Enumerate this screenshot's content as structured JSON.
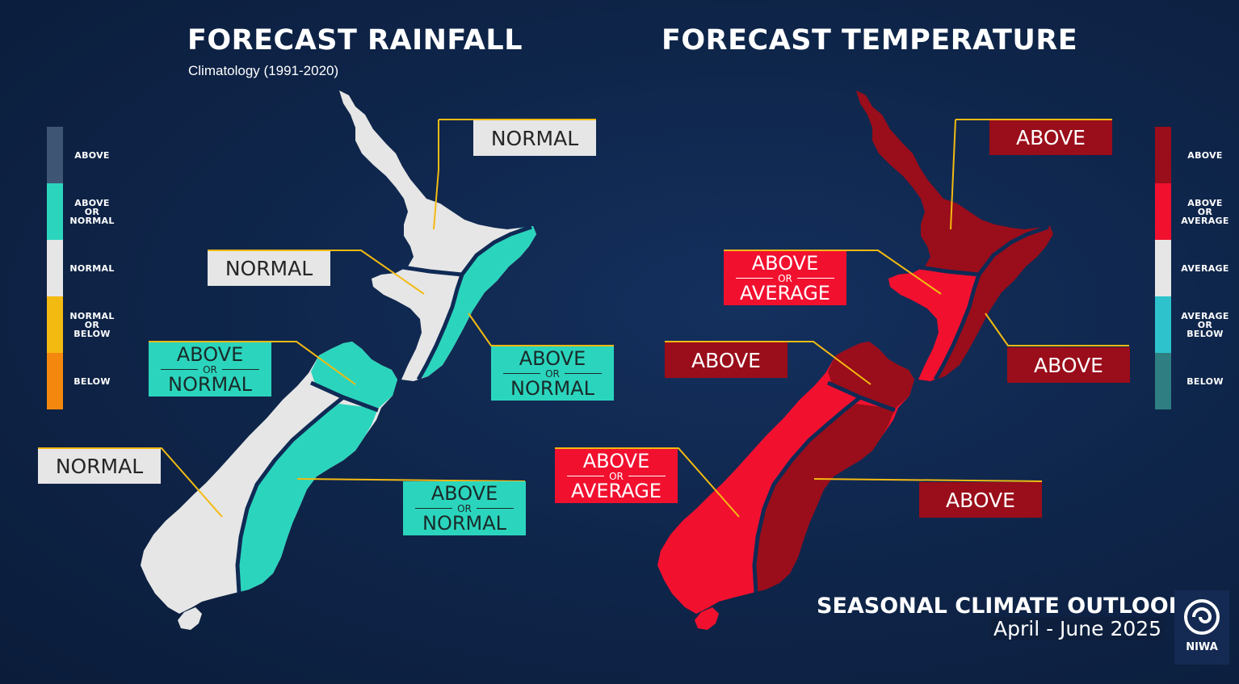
{
  "rainfall": {
    "title": "FORECAST RAINFALL",
    "subtitle": "Climatology (1991-2020)",
    "legend": [
      {
        "label": [
          "ABOVE"
        ],
        "color": "#3e5674"
      },
      {
        "label": [
          "ABOVE",
          "OR",
          "NORMAL"
        ],
        "color": "#2bd5bd"
      },
      {
        "label": [
          "NORMAL"
        ],
        "color": "#e6e6e6"
      },
      {
        "label": [
          "NORMAL",
          "OR",
          "BELOW"
        ],
        "color": "#f3ba12"
      },
      {
        "label": [
          "BELOW"
        ],
        "color": "#f4880e"
      }
    ],
    "regions": {
      "north_north": {
        "l1": "NORMAL"
      },
      "north_west": {
        "l1": "NORMAL"
      },
      "north_east": {
        "l1": "ABOVE",
        "or": "OR",
        "l2": "NORMAL"
      },
      "south_north": {
        "l1": "ABOVE",
        "or": "OR",
        "l2": "NORMAL"
      },
      "south_west": {
        "l1": "NORMAL"
      },
      "south_east": {
        "l1": "ABOVE",
        "or": "OR",
        "l2": "NORMAL"
      }
    }
  },
  "temperature": {
    "title": "FORECAST TEMPERATURE",
    "legend": [
      {
        "label": [
          "ABOVE"
        ],
        "color": "#9a0d1a"
      },
      {
        "label": [
          "ABOVE",
          "OR",
          "AVERAGE"
        ],
        "color": "#f2102f"
      },
      {
        "label": [
          "AVERAGE"
        ],
        "color": "#e6e6e6"
      },
      {
        "label": [
          "AVERAGE",
          "OR",
          "BELOW"
        ],
        "color": "#2ec3cc"
      },
      {
        "label": [
          "BELOW"
        ],
        "color": "#2f7f82"
      }
    ],
    "regions": {
      "north_north": {
        "l1": "ABOVE"
      },
      "north_west": {
        "l1": "ABOVE",
        "or": "OR",
        "l2": "AVERAGE"
      },
      "north_east": {
        "l1": "ABOVE"
      },
      "south_north": {
        "l1": "ABOVE"
      },
      "south_west": {
        "l1": "ABOVE",
        "or": "OR",
        "l2": "AVERAGE"
      },
      "south_east": {
        "l1": "ABOVE"
      }
    }
  },
  "footer": {
    "title": "SEASONAL CLIMATE OUTLOOK",
    "period": "April - June 2025",
    "logo_text": "NIWA",
    "logo_icon": "niwa-swirl-icon"
  },
  "colors": {
    "leader_line": "#f3ba12",
    "region_border": "#0f2a55"
  }
}
